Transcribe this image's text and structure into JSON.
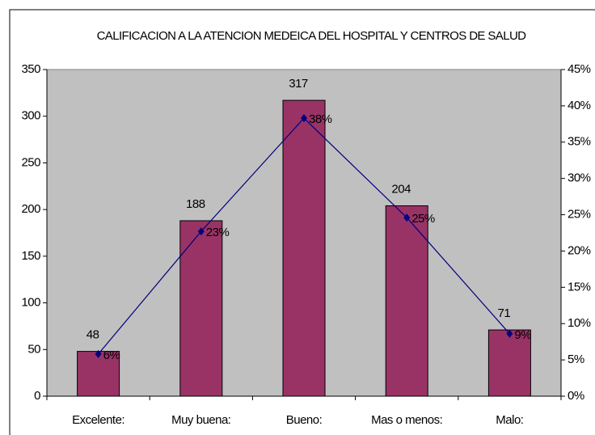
{
  "chart_data": {
    "type": "bar",
    "title": "CALIFICACION A LA ATENCION MEDEICA DEL HOSPITAL Y CENTROS DE SALUD",
    "categories": [
      "Excelente:",
      "Muy buena:",
      "Bueno:",
      "Mas o menos:",
      "Malo:"
    ],
    "series": [
      {
        "type": "bar",
        "color": "#993366",
        "values": [
          48,
          188,
          317,
          204,
          71
        ]
      },
      {
        "type": "line",
        "axis": "y2",
        "color": "#000080",
        "values": [
          5.8,
          22.7,
          38.3,
          24.6,
          8.6
        ],
        "value_labels": [
          "6%",
          "23%",
          "38%",
          "25%",
          "9%"
        ]
      }
    ],
    "ylim": [
      0,
      350
    ],
    "yticks": [
      0,
      50,
      100,
      150,
      200,
      250,
      300,
      350
    ],
    "y2lim": [
      0,
      45
    ],
    "y2ticks": [
      {
        "value": 0,
        "label": "0%"
      },
      {
        "value": 5,
        "label": "5%"
      },
      {
        "value": 10,
        "label": "10%"
      },
      {
        "value": 15,
        "label": "15%"
      },
      {
        "value": 20,
        "label": "20%"
      },
      {
        "value": 25,
        "label": "25%"
      },
      {
        "value": 30,
        "label": "30%"
      },
      {
        "value": 35,
        "label": "35%"
      },
      {
        "value": 40,
        "label": "40%"
      },
      {
        "value": 45,
        "label": "45%"
      }
    ]
  }
}
